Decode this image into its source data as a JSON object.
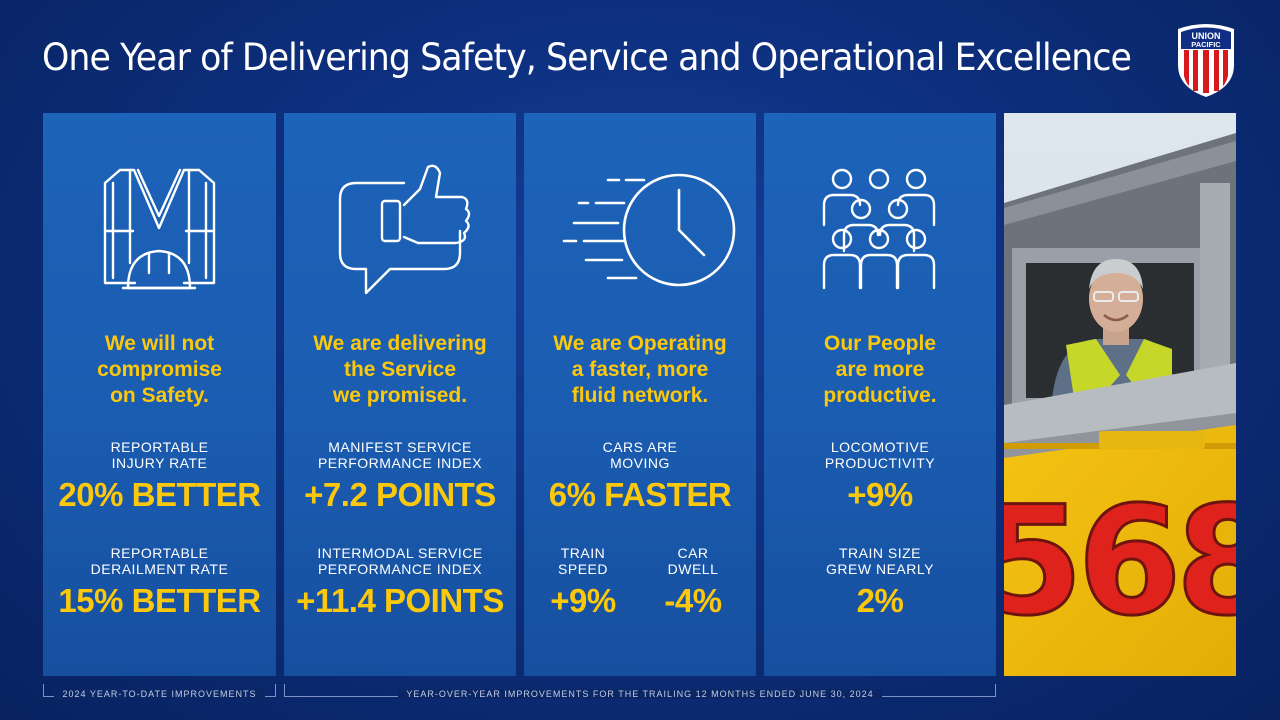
{
  "title": "One Year of Delivering Safety, Service and Operational Excellence",
  "logo": {
    "line1": "UNION",
    "line2": "PACIFIC",
    "colors": {
      "red": "#d7191e",
      "blue": "#0f2e84",
      "white": "#ffffff"
    }
  },
  "colors": {
    "accent_yellow": "#fcc80c",
    "panel_blue": "#1b5db2",
    "background_navy": "#0d2f7e"
  },
  "panels": [
    {
      "icon": "safety-vest-hardhat-icon",
      "headline": "We will not\ncompromise\non Safety.",
      "metrics": [
        {
          "label": "REPORTABLE\nINJURY RATE",
          "value": "20% BETTER"
        },
        {
          "label": "REPORTABLE\nDERAILMENT RATE",
          "value": "15% BETTER"
        }
      ]
    },
    {
      "icon": "thumbs-up-speech-bubble-icon",
      "headline": "We are delivering\nthe Service\nwe promised.",
      "metrics": [
        {
          "label": "MANIFEST SERVICE\nPERFORMANCE INDEX",
          "value": "+7.2 POINTS"
        },
        {
          "label": "INTERMODAL SERVICE\nPERFORMANCE INDEX",
          "value": "+11.4 POINTS"
        }
      ]
    },
    {
      "icon": "fast-clock-icon",
      "headline": "We are Operating\na faster, more\nfluid network.",
      "metrics": [
        {
          "label": "CARS ARE\nMOVING",
          "value": "6% FASTER"
        },
        {
          "label": "TRAIN\nSPEED",
          "value": "+9%"
        },
        {
          "label": "CAR\nDWELL",
          "value": "-4%"
        }
      ]
    },
    {
      "icon": "people-group-icon",
      "headline": "Our People\nare more\nproductive.",
      "metrics": [
        {
          "label": "LOCOMOTIVE\nPRODUCTIVITY",
          "value": "+9%"
        },
        {
          "label": "TRAIN SIZE\nGREW NEARLY",
          "value": "2%"
        }
      ]
    }
  ],
  "photo": {
    "locomotive_number": "568"
  },
  "footer": {
    "left": "2024 YEAR-TO-DATE IMPROVEMENTS",
    "right": "YEAR-OVER-YEAR IMPROVEMENTS FOR THE TRAILING 12 MONTHS ENDED JUNE 30, 2024"
  }
}
